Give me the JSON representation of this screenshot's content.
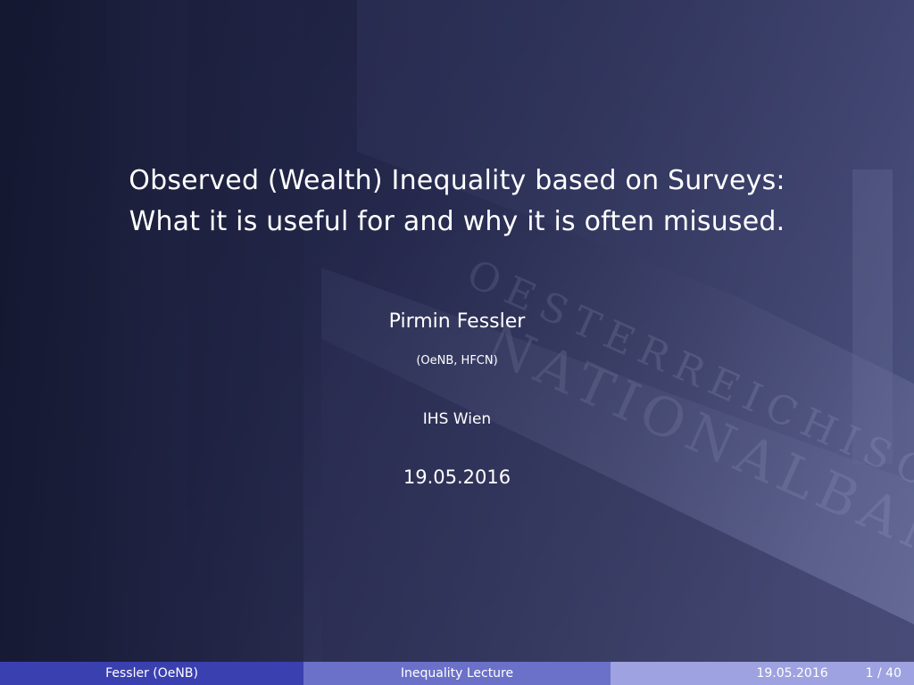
{
  "title": {
    "line1": "Observed (Wealth) Inequality based on Surveys:",
    "line2": "What it is useful for and why it is often misused."
  },
  "author": "Pirmin Fessler",
  "affiliation": "(OeNB, HFCN)",
  "institute": "IHS Wien",
  "date": "19.05.2016",
  "background_inscription": [
    "OESTERREICHISCHE",
    "NATIONALBANK"
  ],
  "footer": {
    "author_short": "Fessler  (OeNB)",
    "short_title": "Inequality Lecture",
    "date": "19.05.2016",
    "page": "1 / 40"
  },
  "colors": {
    "footer_left": "#3b40b0",
    "footer_middle": "#6b70c9",
    "footer_right": "#9ea2e0",
    "text": "#ffffff"
  }
}
